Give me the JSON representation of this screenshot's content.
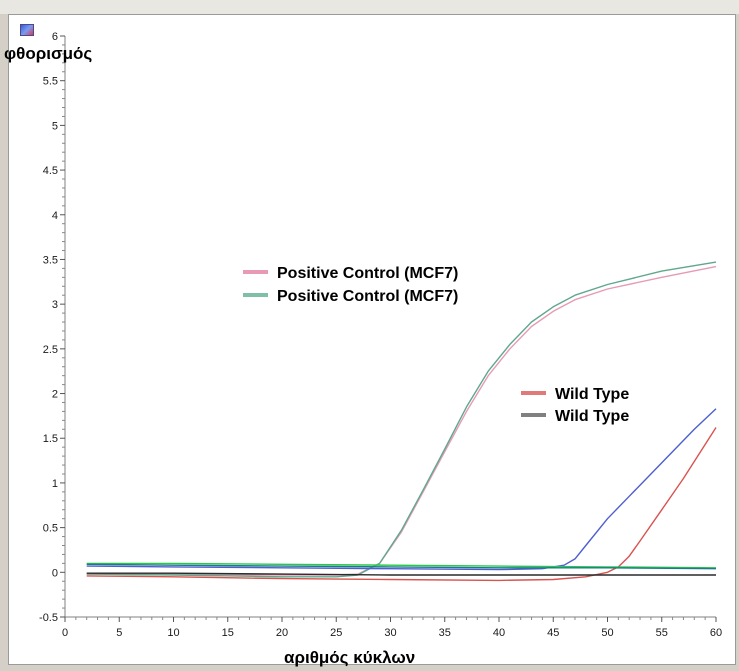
{
  "chart_data": {
    "type": "line",
    "ylabel": "φθορισμός",
    "xlabel": "αριθμός κύκλων",
    "xlim": [
      0,
      60
    ],
    "ylim": [
      -0.5,
      6
    ],
    "xticks": [
      0,
      5,
      10,
      15,
      20,
      25,
      30,
      35,
      40,
      45,
      50,
      55,
      60
    ],
    "yticks": [
      -0.5,
      0,
      0.5,
      1,
      1.5,
      2,
      2.5,
      3,
      3.5,
      4,
      4.5,
      5,
      5.5,
      6
    ],
    "xtick_labels": [
      "0",
      "5",
      "10",
      "15",
      "20",
      "25",
      "30",
      "35",
      "40",
      "45",
      "50",
      "55",
      "60"
    ],
    "ytick_labels": [
      "-0.5",
      "0",
      "0.5",
      "1",
      "1.5",
      "2",
      "2.5",
      "3",
      "3.5",
      "4",
      "4.5",
      "5",
      "5.5",
      "6"
    ],
    "legend": [
      {
        "label": "Positive Control (MCF7)",
        "color": "#e79ab5"
      },
      {
        "label": "Positive Control (MCF7)",
        "color": "#7fbfa8"
      },
      {
        "label": "Wild Type",
        "color": "#e07a7a"
      },
      {
        "label": "Wild Type",
        "color": "#808080"
      }
    ],
    "series": [
      {
        "color": "#e79ab5",
        "x": [
          2,
          10,
          20,
          25,
          27,
          29,
          31,
          33,
          35,
          37,
          39,
          41,
          43,
          45,
          47,
          50,
          55,
          60
        ],
        "y": [
          -0.02,
          -0.02,
          -0.03,
          -0.03,
          -0.02,
          0.1,
          0.45,
          0.9,
          1.35,
          1.8,
          2.2,
          2.5,
          2.75,
          2.92,
          3.05,
          3.17,
          3.3,
          3.42
        ]
      },
      {
        "color": "#5fa88c",
        "x": [
          2,
          10,
          20,
          25,
          27,
          29,
          31,
          33,
          35,
          37,
          39,
          41,
          43,
          45,
          47,
          50,
          55,
          60
        ],
        "y": [
          -0.02,
          -0.03,
          -0.05,
          -0.05,
          -0.03,
          0.1,
          0.47,
          0.92,
          1.38,
          1.85,
          2.25,
          2.55,
          2.8,
          2.97,
          3.1,
          3.22,
          3.37,
          3.47
        ]
      },
      {
        "color": "#d9534f",
        "x": [
          2,
          10,
          20,
          30,
          40,
          45,
          48,
          50,
          51,
          52,
          53,
          55,
          57,
          60
        ],
        "y": [
          -0.04,
          -0.05,
          -0.07,
          -0.08,
          -0.09,
          -0.08,
          -0.05,
          0.0,
          0.06,
          0.18,
          0.35,
          0.7,
          1.05,
          1.62
        ]
      },
      {
        "color": "#4d5fd0",
        "x": [
          2,
          10,
          20,
          30,
          40,
          44,
          46,
          47,
          48,
          50,
          52,
          54,
          56,
          58,
          60
        ],
        "y": [
          0.07,
          0.06,
          0.05,
          0.04,
          0.03,
          0.04,
          0.08,
          0.15,
          0.3,
          0.6,
          0.85,
          1.1,
          1.35,
          1.6,
          1.83
        ]
      },
      {
        "color": "#28c84a",
        "x": [
          2,
          10,
          20,
          30,
          40,
          50,
          60
        ],
        "y": [
          0.1,
          0.1,
          0.09,
          0.08,
          0.07,
          0.06,
          0.05
        ]
      },
      {
        "color": "#2a2a2a",
        "x": [
          2,
          10,
          20,
          30,
          40,
          50,
          60
        ],
        "y": [
          -0.01,
          -0.01,
          -0.02,
          -0.03,
          -0.03,
          -0.03,
          -0.03
        ]
      },
      {
        "color": "#1e7a8a",
        "x": [
          2,
          10,
          20,
          30,
          40,
          50,
          60
        ],
        "y": [
          0.09,
          0.08,
          0.07,
          0.06,
          0.05,
          0.05,
          0.04
        ]
      }
    ]
  }
}
